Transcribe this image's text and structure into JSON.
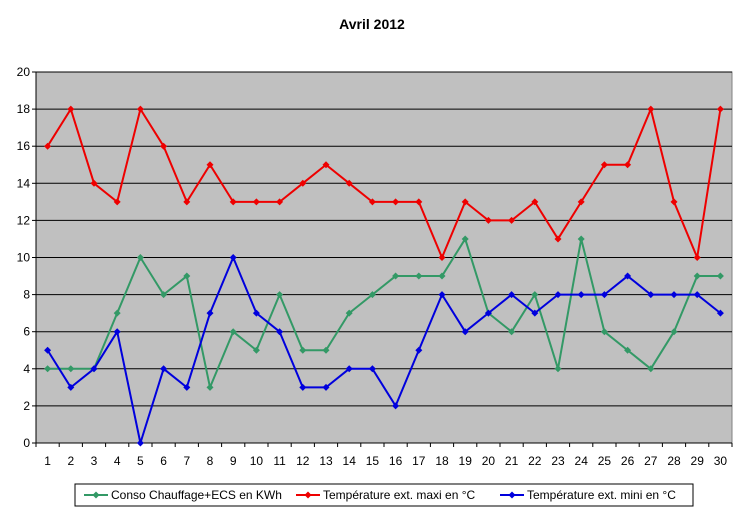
{
  "chart_data": {
    "type": "line",
    "title": "Avril 2012",
    "xlabel": "",
    "ylabel": "",
    "x": [
      1,
      2,
      3,
      4,
      5,
      6,
      7,
      8,
      9,
      10,
      11,
      12,
      13,
      14,
      15,
      16,
      17,
      18,
      19,
      20,
      21,
      22,
      23,
      24,
      25,
      26,
      27,
      28,
      29,
      30
    ],
    "ylim": [
      0,
      20
    ],
    "yticks": [
      0,
      2,
      4,
      6,
      8,
      10,
      12,
      14,
      16,
      18,
      20
    ],
    "grid": true,
    "plot_background": "#c0c0c0",
    "legend_position": "bottom",
    "series": [
      {
        "name": "Conso Chauffage+ECS en KWh",
        "color": "#339966",
        "values": [
          4,
          4,
          4,
          7,
          10,
          8,
          9,
          3,
          6,
          5,
          8,
          5,
          5,
          7,
          8,
          9,
          9,
          9,
          11,
          7,
          6,
          8,
          4,
          11,
          6,
          5,
          4,
          6,
          9,
          9
        ]
      },
      {
        "name": "Température ext. maxi en °C",
        "color": "#ee0000",
        "values": [
          16,
          18,
          14,
          13,
          18,
          16,
          13,
          15,
          13,
          13,
          13,
          14,
          15,
          14,
          13,
          13,
          13,
          10,
          13,
          12,
          12,
          13,
          11,
          13,
          15,
          15,
          18,
          13,
          10,
          18
        ]
      },
      {
        "name": "Température ext. mini en °C",
        "color": "#0000dd",
        "values": [
          5,
          3,
          4,
          6,
          0,
          4,
          3,
          7,
          10,
          7,
          6,
          3,
          3,
          4,
          4,
          2,
          5,
          8,
          6,
          7,
          8,
          7,
          8,
          8,
          8,
          9,
          8,
          8,
          8,
          7
        ]
      }
    ]
  }
}
